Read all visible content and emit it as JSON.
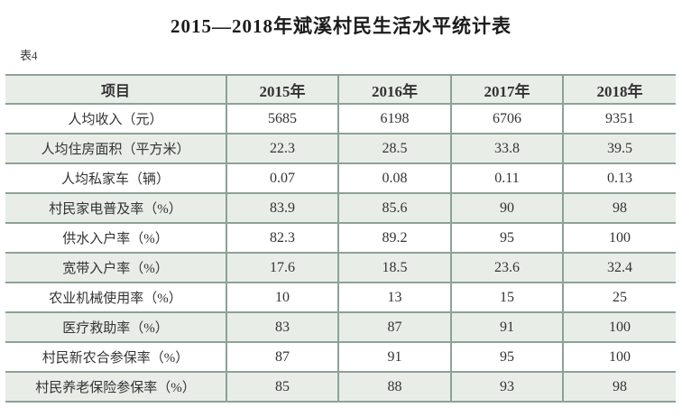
{
  "page": {
    "title": "2015—2018年斌溪村民生活水平统计表",
    "table_label": "表4"
  },
  "chart_data": {
    "type": "table",
    "columns": [
      "项目",
      "2015年",
      "2016年",
      "2017年",
      "2018年"
    ],
    "rows": [
      {
        "label": "人均收入（元）",
        "values": [
          "5685",
          "6198",
          "6706",
          "9351"
        ]
      },
      {
        "label": "人均住房面积（平方米）",
        "values": [
          "22.3",
          "28.5",
          "33.8",
          "39.5"
        ]
      },
      {
        "label": "人均私家车（辆）",
        "values": [
          "0.07",
          "0.08",
          "0.11",
          "0.13"
        ]
      },
      {
        "label": "村民家电普及率（%）",
        "values": [
          "83.9",
          "85.6",
          "90",
          "98"
        ]
      },
      {
        "label": "供水入户率（%）",
        "values": [
          "82.3",
          "89.2",
          "95",
          "100"
        ]
      },
      {
        "label": "宽带入户率（%）",
        "values": [
          "17.6",
          "18.5",
          "23.6",
          "32.4"
        ]
      },
      {
        "label": "农业机械使用率（%）",
        "values": [
          "10",
          "13",
          "15",
          "25"
        ]
      },
      {
        "label": "医疗救助率（%）",
        "values": [
          "83",
          "87",
          "91",
          "100"
        ]
      },
      {
        "label": "村民新农合参保率（%）",
        "values": [
          "87",
          "91",
          "95",
          "100"
        ]
      },
      {
        "label": "村民养老保险参保率（%）",
        "values": [
          "85",
          "88",
          "93",
          "98"
        ]
      }
    ]
  },
  "colors": {
    "row_shade": "#e9ede8",
    "grid_line": "#8ca295",
    "text": "#333333",
    "title_text": "#1c1c1c"
  }
}
